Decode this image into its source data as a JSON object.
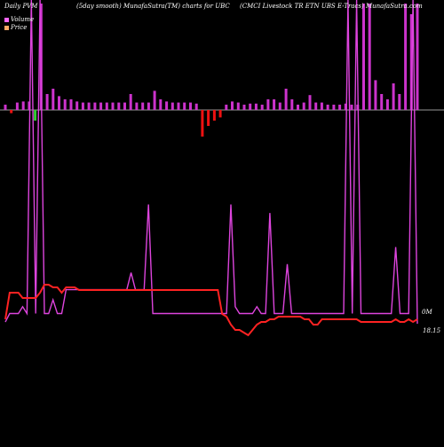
{
  "header": {
    "left": "Daily PVM",
    "middle": "(5day smooth) MunafaSutra(TM) charts for UBC",
    "right": "(CMCI Livestock TR ETN  UBS E-Tracs) MunafaSutra.com"
  },
  "legend": {
    "volume": "Volume",
    "price": "Price",
    "volume_color": "#ff66ff",
    "price_color": "#ffaa66"
  },
  "labels": {
    "volume_value": "0M",
    "price_value": "18.15"
  },
  "colors": {
    "background": "#000000",
    "volume_line": "#dd44dd",
    "price_line": "#ff2222",
    "bar_up": "#cc33cc",
    "bar_down": "#ee1111",
    "bar_green": "#33cc33",
    "baseline": "#cccccc"
  },
  "chart_data": {
    "type": "line",
    "series": [
      {
        "name": "Volume",
        "values": [
          0.1,
          0.6,
          0.6,
          0.6,
          1.0,
          0.6,
          19.0,
          0.6,
          19.0,
          0.6,
          0.6,
          1.4,
          0.6,
          0.6,
          2.0,
          2.0,
          2.0,
          2.0,
          2.0,
          2.0,
          2.0,
          2.0,
          2.0,
          2.0,
          2.0,
          2.0,
          2.0,
          2.0,
          2.0,
          3.0,
          2.0,
          2.0,
          2.0,
          7.0,
          0.6,
          0.6,
          0.6,
          0.6,
          0.6,
          0.6,
          0.6,
          0.6,
          0.6,
          0.6,
          0.6,
          0.6,
          0.6,
          0.6,
          0.6,
          0.6,
          0.6,
          0.6,
          7.0,
          1.0,
          0.6,
          0.6,
          0.6,
          0.6,
          1.0,
          0.6,
          0.6,
          6.5,
          0.6,
          0.6,
          0.6,
          3.5,
          0.6,
          0.6,
          0.6,
          0.6,
          0.6,
          0.6,
          0.6,
          0.6,
          0.6,
          0.6,
          0.6,
          0.6,
          0.6,
          19.0,
          0.6,
          19.0,
          0.6,
          0.6,
          0.6,
          0.6,
          0.6,
          0.6,
          0.6,
          0.6,
          4.5,
          0.6,
          0.6,
          0.6,
          19.0,
          0.0
        ],
        "x_step": 1
      },
      {
        "name": "Price",
        "values": [
          18.5,
          19.0,
          19.0,
          19.0,
          18.9,
          18.9,
          18.9,
          18.9,
          19.0,
          19.15,
          19.15,
          19.1,
          19.1,
          19.0,
          19.1,
          19.1,
          19.1,
          19.05,
          19.05,
          19.05,
          19.05,
          19.05,
          19.05,
          19.05,
          19.05,
          19.05,
          19.05,
          19.05,
          19.05,
          19.05,
          19.05,
          19.05,
          19.05,
          19.05,
          19.05,
          19.05,
          19.05,
          19.05,
          19.05,
          19.05,
          19.05,
          19.05,
          19.05,
          19.05,
          19.05,
          19.05,
          19.05,
          19.05,
          19.05,
          19.05,
          18.6,
          18.55,
          18.4,
          18.3,
          18.3,
          18.25,
          18.2,
          18.3,
          18.4,
          18.45,
          18.45,
          18.5,
          18.5,
          18.55,
          18.55,
          18.55,
          18.55,
          18.55,
          18.55,
          18.5,
          18.5,
          18.4,
          18.4,
          18.5,
          18.5,
          18.5,
          18.5,
          18.5,
          18.5,
          18.5,
          18.5,
          18.5,
          18.45,
          18.45,
          18.45,
          18.45,
          18.45,
          18.45,
          18.45,
          18.45,
          18.5,
          18.45,
          18.45,
          18.5,
          18.45,
          18.5
        ]
      },
      {
        "name": "Volume bars",
        "values": [
          0.5,
          -0.3,
          0.7,
          0.8,
          0.8,
          -1.0,
          10.0,
          1.5,
          2.0,
          1.3,
          1.0,
          1.0,
          0.8,
          0.7,
          0.7,
          0.7,
          0.7,
          0.7,
          0.7,
          0.7,
          0.7,
          1.5,
          0.7,
          0.7,
          0.7,
          1.8,
          1.0,
          0.8,
          0.7,
          0.7,
          0.7,
          0.7,
          0.6,
          -2.5,
          -1.5,
          -1.0,
          -0.7,
          0.5,
          0.8,
          0.7,
          0.5,
          0.6,
          0.6,
          0.5,
          1.0,
          1.0,
          0.7,
          2.0,
          1.0,
          0.5,
          0.7,
          1.4,
          0.7,
          0.7,
          0.5,
          0.5,
          0.5,
          0.6,
          0.5,
          0.5,
          10.0,
          10.0,
          2.8,
          1.5,
          1.0,
          2.5,
          1.5,
          10.0,
          9.0,
          10.0
        ]
      }
    ],
    "ylim_volume": [
      0,
      19
    ],
    "ylim_price": [
      17.5,
      19.5
    ]
  }
}
